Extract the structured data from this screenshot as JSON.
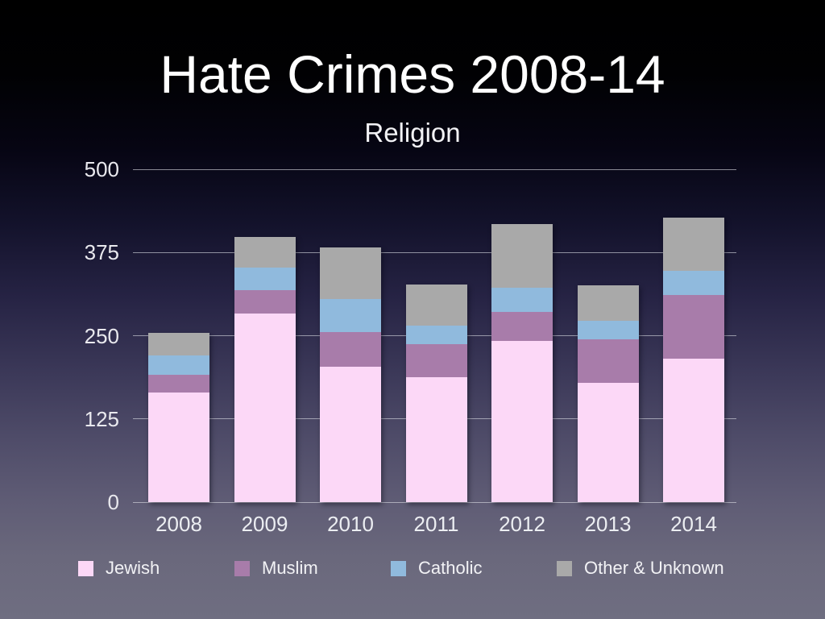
{
  "slide": {
    "title": "Hate Crimes 2008-14",
    "subtitle": "Religion"
  },
  "chart_data": {
    "type": "bar",
    "stacked": true,
    "title": "Hate Crimes 2008-14",
    "subtitle": "Religion",
    "categories": [
      "2008",
      "2009",
      "2010",
      "2011",
      "2012",
      "2013",
      "2014"
    ],
    "series": [
      {
        "name": "Jewish",
        "color": "#fcd8f7",
        "values": [
          165,
          283,
          204,
          188,
          242,
          179,
          215
        ]
      },
      {
        "name": "Muslim",
        "color": "#a87caa",
        "values": [
          26,
          36,
          51,
          49,
          44,
          66,
          96
        ]
      },
      {
        "name": "Catholic",
        "color": "#90badd",
        "values": [
          29,
          33,
          50,
          28,
          36,
          28,
          36
        ]
      },
      {
        "name": "Other & Unknown",
        "color": "#a9a9a9",
        "values": [
          34,
          46,
          78,
          62,
          96,
          53,
          80
        ]
      }
    ],
    "totals": [
      254,
      398,
      383,
      327,
      418,
      326,
      427
    ],
    "xlabel": "",
    "ylabel": "",
    "ylim": [
      0,
      500
    ],
    "yticks": [
      0,
      125,
      250,
      375,
      500
    ],
    "grid": true,
    "legend_position": "bottom",
    "background": "black-to-gray-purple-gradient",
    "text_color": "#ffffff"
  }
}
